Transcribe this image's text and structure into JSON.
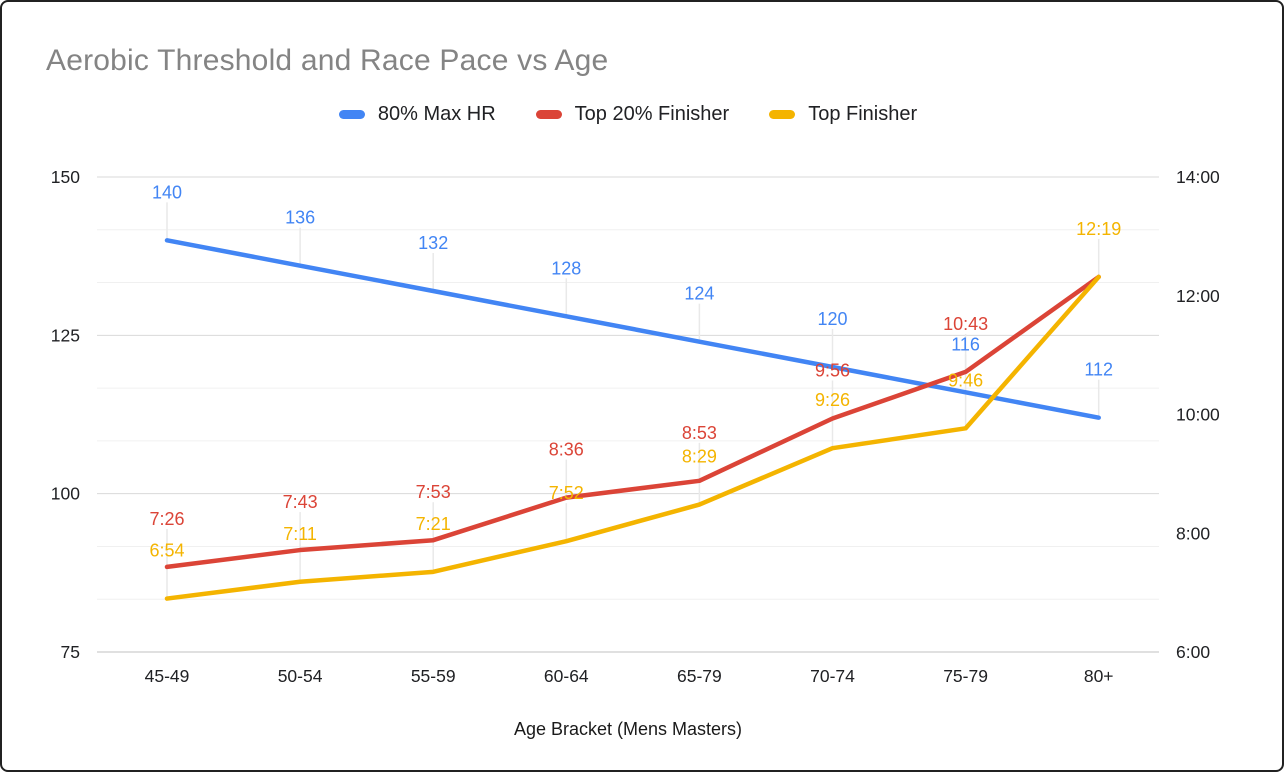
{
  "chart_data": {
    "type": "line",
    "title": "Aerobic Threshold and Race Pace vs Age",
    "xlabel": "Age Bracket (Mens Masters)",
    "categories": [
      "45-49",
      "50-54",
      "55-59",
      "60-64",
      "65-79",
      "70-74",
      "75-79",
      "80+"
    ],
    "left_axis": {
      "ticks": [
        "150",
        "125",
        "100",
        "75"
      ],
      "min": 75,
      "max": 150
    },
    "right_axis": {
      "ticks": [
        "14:00",
        "12:00",
        "10:00",
        "8:00",
        "6:00"
      ],
      "min_minutes": 6,
      "max_minutes": 14
    },
    "series": [
      {
        "name": "80% Max HR",
        "color": "#4285F4",
        "axis": "left",
        "labels": [
          "140",
          "136",
          "132",
          "128",
          "124",
          "120",
          "116",
          "112"
        ],
        "values": [
          140,
          136,
          132,
          128,
          124,
          120,
          116,
          112
        ],
        "hidden_label_indices": []
      },
      {
        "name": "Top 20% Finisher",
        "color": "#DB4437",
        "axis": "right",
        "labels": [
          "7:26",
          "7:43",
          "7:53",
          "8:36",
          "8:53",
          "9:56",
          "10:43",
          "12:19"
        ],
        "values_minutes": [
          7.433,
          7.717,
          7.883,
          8.6,
          8.883,
          9.933,
          10.717,
          12.317
        ],
        "hidden_label_indices": [
          7
        ]
      },
      {
        "name": "Top Finisher",
        "color": "#F4B400",
        "axis": "right",
        "labels": [
          "6:54",
          "7:11",
          "7:21",
          "7:52",
          "8:29",
          "9:26",
          "9:46",
          "12:19"
        ],
        "values_minutes": [
          6.9,
          7.183,
          7.35,
          7.867,
          8.483,
          9.433,
          9.767,
          12.317
        ],
        "hidden_label_indices": []
      }
    ],
    "grid": {
      "major_color": "#dadada",
      "minor_color": "#f0f0f0",
      "baseline_color": "#c2c2c2",
      "connector_color": "#e9e9e9"
    },
    "text_colors": {
      "title": "#848484",
      "ticks": "#202124",
      "legend": "#202124",
      "xlabel": "#1a1a1a"
    }
  },
  "legend": {
    "items": [
      {
        "label": "80% Max HR",
        "color": "#4285F4"
      },
      {
        "label": "Top 20% Finisher",
        "color": "#DB4437"
      },
      {
        "label": "Top Finisher",
        "color": "#F4B400"
      }
    ]
  }
}
